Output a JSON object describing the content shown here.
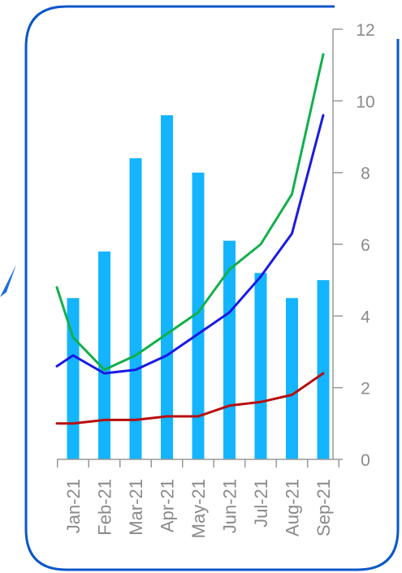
{
  "chart_data": {
    "type": "bar",
    "categories": [
      "Jan-21",
      "Feb-21",
      "Mar-21",
      "Apr-21",
      "May-21",
      "Jun-21",
      "Jul-21",
      "Aug-21",
      "Sep-21"
    ],
    "bar_values": [
      4.5,
      5.8,
      8.4,
      9.6,
      8.0,
      6.1,
      5.2,
      4.5,
      5.0
    ],
    "series": [
      {
        "values": [
          3.4,
          2.5,
          2.9,
          3.5,
          4.1,
          5.3,
          6.0,
          7.4,
          11.3
        ],
        "color": "#12b04a",
        "lead_in": 4.8
      },
      {
        "values": [
          2.9,
          2.4,
          2.5,
          2.9,
          3.5,
          4.1,
          5.1,
          6.3,
          9.6
        ],
        "color": "#1a1ae6",
        "lead_in": 2.6
      },
      {
        "values": [
          1.0,
          1.1,
          1.1,
          1.2,
          1.2,
          1.5,
          1.6,
          1.8,
          2.4
        ],
        "color": "#b80d0d",
        "lead_in": 1.0
      }
    ],
    "bar_color": "#14b4ff",
    "y_ticks": [
      0,
      2,
      4,
      6,
      8,
      10,
      12
    ],
    "ylim": [
      0,
      12
    ],
    "y_axis_position": "right",
    "grid": false,
    "frame_color": "#0b57c9",
    "arrow_color": "#1f6fe0",
    "axis_color": "#999999",
    "label_color": "#8a8a8a"
  }
}
